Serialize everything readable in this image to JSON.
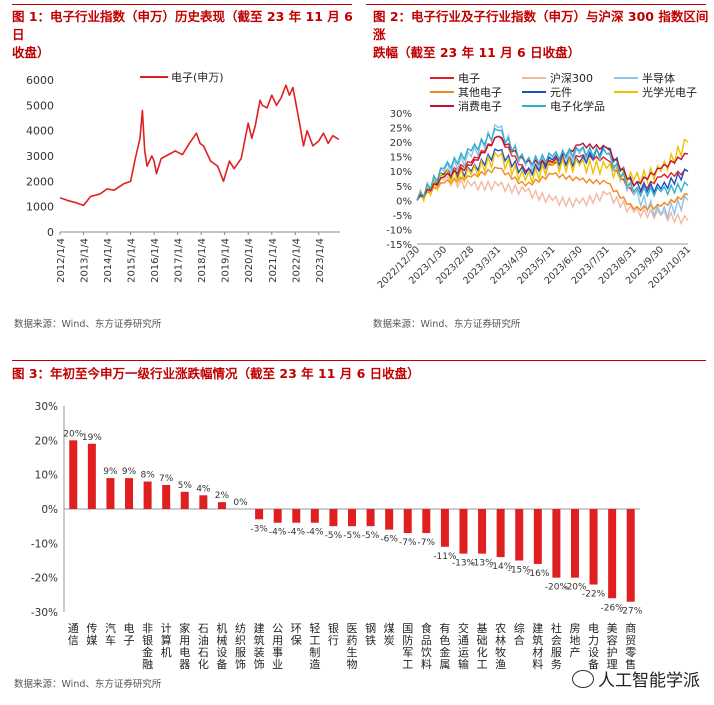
{
  "panels": {
    "p1": {
      "title_line1": "图 1：电子行业指数（申万）历史表现（截至 23 年 11 月 6 日",
      "title_line2": "收盘）",
      "source": "数据来源：Wind、东方证券研究所"
    },
    "p2": {
      "title_line1": "图 2：电子行业及子行业指数（申万）与沪深 300 指数区间涨",
      "title_line2": "跌幅（截至 23 年 11 月 6 日收盘）",
      "source": "数据来源：Wind、东方证券研究所"
    },
    "p3": {
      "title": "图 3：年初至今申万一级行业涨跌幅情况（截至 23 年 11 月 6 日收盘）",
      "source": "数据来源：Wind、东方证券研究所"
    }
  },
  "watermark": "人工智能学派",
  "chart_data": [
    {
      "type": "line",
      "title": "电子行业指数（申万）历史表现",
      "legend": [
        "电子(申万)"
      ],
      "color": "#e02020",
      "ylim": [
        0,
        6000
      ],
      "yticks": [
        "0",
        "1000",
        "2000",
        "3000",
        "4000",
        "5000",
        "6000"
      ],
      "xticks": [
        "2012/1/4",
        "2013/1/4",
        "2014/1/4",
        "2015/1/4",
        "2016/1/4",
        "2017/1/4",
        "2018/1/4",
        "2019/1/4",
        "2020/1/4",
        "2021/1/4",
        "2022/1/4",
        "2023/1/4"
      ],
      "x": [
        2012.0,
        2012.3,
        2012.7,
        2013.0,
        2013.3,
        2013.7,
        2014.0,
        2014.3,
        2014.7,
        2015.0,
        2015.2,
        2015.4,
        2015.5,
        2015.6,
        2015.7,
        2015.9,
        2016.0,
        2016.1,
        2016.3,
        2016.7,
        2016.9,
        2017.2,
        2017.5,
        2017.8,
        2017.95,
        2018.1,
        2018.4,
        2018.7,
        2018.95,
        2019.2,
        2019.4,
        2019.7,
        2020.0,
        2020.15,
        2020.3,
        2020.5,
        2020.6,
        2020.8,
        2021.0,
        2021.2,
        2021.4,
        2021.6,
        2021.75,
        2021.9,
        2022.0,
        2022.2,
        2022.35,
        2022.5,
        2022.75,
        2023.0,
        2023.2,
        2023.4,
        2023.6,
        2023.85
      ],
      "values": [
        1350,
        1250,
        1150,
        1050,
        1400,
        1500,
        1700,
        1650,
        1900,
        2000,
        2900,
        3700,
        4800,
        3200,
        2600,
        3000,
        2800,
        2300,
        2900,
        3100,
        3200,
        3050,
        3500,
        3900,
        3500,
        3400,
        2800,
        2600,
        2000,
        2800,
        2500,
        2900,
        4300,
        3700,
        4200,
        5200,
        5000,
        4900,
        5400,
        5000,
        5300,
        5800,
        5400,
        5700,
        5200,
        4200,
        3400,
        4000,
        3400,
        3600,
        3900,
        3500,
        3800,
        3650
      ]
    },
    {
      "type": "line",
      "title": "电子行业及子行业指数（申万）与沪深 300 指数区间涨跌幅",
      "ylim": [
        -15,
        30
      ],
      "yticks": [
        "-15%",
        "-10%",
        "-5%",
        "0%",
        "5%",
        "10%",
        "15%",
        "20%",
        "25%",
        "30%"
      ],
      "x": [
        "2022/12/30",
        "2023/1/30",
        "2023/2/28",
        "2023/3/31",
        "2023/4/30",
        "2023/5/31",
        "2023/6/30",
        "2023/7/31",
        "2023/8/31",
        "2023/9/30",
        "2023/10/31"
      ],
      "series": [
        {
          "name": "电子",
          "color": "#e02020",
          "values": [
            0,
            9,
            13,
            22,
            10,
            12,
            15,
            14,
            2,
            8,
            10
          ]
        },
        {
          "name": "沪深300",
          "color": "#f4b8a0",
          "values": [
            0,
            7,
            5,
            5,
            3,
            0,
            -1,
            2,
            -4,
            -5,
            -7
          ]
        },
        {
          "name": "半导体",
          "color": "#8fc3ea",
          "values": [
            0,
            10,
            15,
            25,
            12,
            13,
            16,
            16,
            2,
            -5,
            0
          ]
        },
        {
          "name": "其他电子",
          "color": "#f08a20",
          "values": [
            0,
            6,
            8,
            11,
            5,
            9,
            7,
            6,
            -3,
            -2,
            2
          ]
        },
        {
          "name": "元件",
          "color": "#2050c0",
          "values": [
            0,
            9,
            10,
            17,
            9,
            14,
            13,
            18,
            5,
            4,
            10
          ]
        },
        {
          "name": "光学光电子",
          "color": "#f0c000",
          "values": [
            0,
            8,
            9,
            15,
            7,
            12,
            12,
            11,
            7,
            10,
            20
          ]
        },
        {
          "name": "消费电子",
          "color": "#c01030",
          "values": [
            0,
            8,
            12,
            22,
            13,
            13,
            19,
            18,
            5,
            11,
            16
          ]
        },
        {
          "name": "电子化学品",
          "color": "#30b0c8",
          "values": [
            0,
            11,
            17,
            24,
            13,
            15,
            17,
            16,
            3,
            3,
            5
          ]
        }
      ]
    },
    {
      "type": "bar",
      "title": "年初至今申万一级行业涨跌幅情况",
      "ylim": [
        -30,
        30
      ],
      "yticks": [
        "-30%",
        "-20%",
        "-10%",
        "0%",
        "10%",
        "20%",
        "30%"
      ],
      "color": "#e02020",
      "categories": [
        "通信",
        "传媒",
        "汽车",
        "电子",
        "非银金融",
        "计算机",
        "家用电器",
        "石油石化",
        "机械设备",
        "纺织服饰",
        "建筑装饰",
        "公用事业",
        "环保",
        "轻工制造",
        "银行",
        "医药生物",
        "钢铁",
        "煤炭",
        "国防军工",
        "食品饮料",
        "有色金属",
        "交通运输",
        "基础化工",
        "农林牧渔",
        "综合",
        "建筑材料",
        "社会服务",
        "房地产",
        "电力设备",
        "美容护理",
        "商贸零售"
      ],
      "values": [
        20,
        19,
        9,
        9,
        8,
        7,
        5,
        4,
        2,
        0,
        -3,
        -4,
        -4,
        -4,
        -5,
        -5,
        -5,
        -6,
        -7,
        -7,
        -11,
        -13,
        -13,
        -14,
        -15,
        -16,
        -20,
        -20,
        -22,
        -26,
        -27
      ],
      "labels": [
        "20%",
        "19%",
        "9%",
        "9%",
        "8%",
        "7%",
        "5%",
        "4%",
        "2%",
        "0%",
        "-3%",
        "-4%",
        "-4%",
        "-4%",
        "-5%",
        "-5%",
        "-5%",
        "-6%",
        "-7%",
        "-7%",
        "-11%",
        "-13%",
        "-13%",
        "-14%",
        "-15%",
        "-16%",
        "-20%",
        "-20%",
        "-22%",
        "-26%",
        "-27%"
      ]
    }
  ]
}
